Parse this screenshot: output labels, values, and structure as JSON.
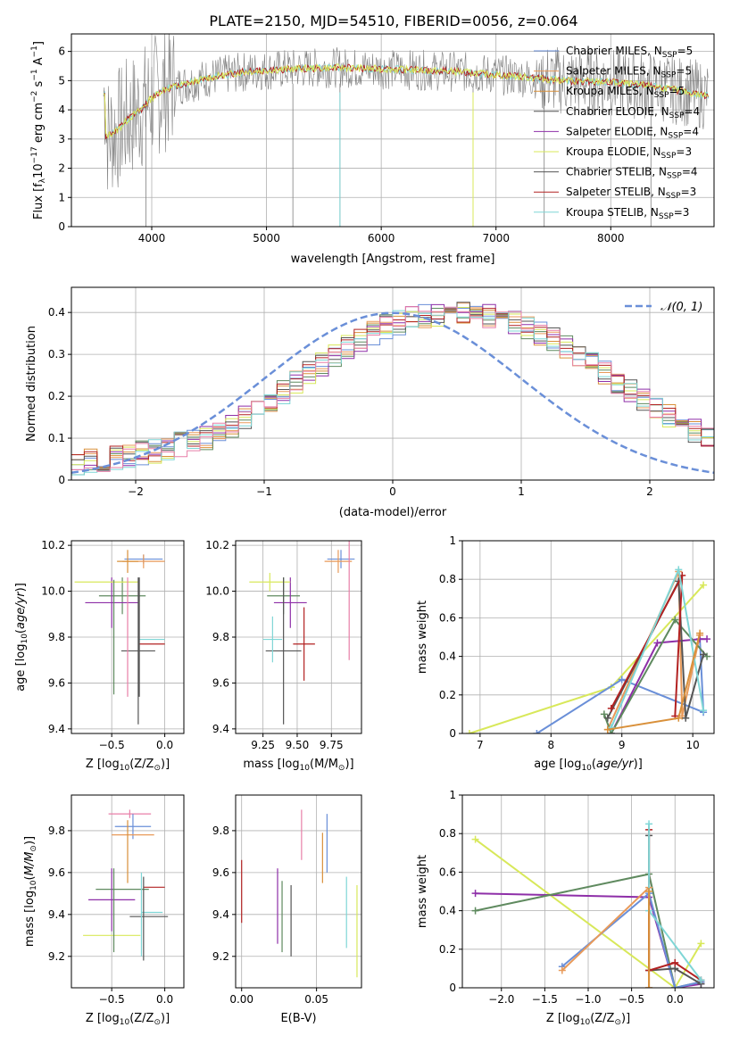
{
  "figure_title": "PLATE=2150, MJD=54510, FIBERID=0056, z=0.064",
  "colors": {
    "grid": "#b0b0b0",
    "series": [
      "#6a8fd8",
      "#e89a5a",
      "#d9903a",
      "#5f8a5f",
      "#8e2fa8",
      "#d8e85a",
      "#555555",
      "#b22222",
      "#7fd6d6"
    ],
    "pink": "#e87fa8",
    "gray_data": "#808080"
  },
  "legend_spectrum": [
    {
      "pre": "Chabrier MILES, N",
      "sub": "SSP",
      "post": "=5"
    },
    {
      "pre": "Salpeter MILES, N",
      "sub": "SSP",
      "post": "=5"
    },
    {
      "pre": "Kroupa MILES, N",
      "sub": "SSP",
      "post": "=5"
    },
    {
      "pre": "Chabrier ELODIE, N",
      "sub": "SSP",
      "post": "=4"
    },
    {
      "pre": "Salpeter ELODIE, N",
      "sub": "SSP",
      "post": "=4"
    },
    {
      "pre": "Kroupa ELODIE, N",
      "sub": "SSP",
      "post": "=3"
    },
    {
      "pre": "Chabrier STELIB, N",
      "sub": "SSP",
      "post": "=4"
    },
    {
      "pre": "Salpeter STELIB, N",
      "sub": "SSP",
      "post": "=3"
    },
    {
      "pre": "Kroupa STELIB, N",
      "sub": "SSP",
      "post": "=3"
    }
  ],
  "legend_hist": "𝒩(0, 1)",
  "chart_data": [
    {
      "id": "spectrum",
      "type": "line",
      "xlabel": "wavelength [Angstrom, rest frame]",
      "ylabel_pre": "Flux [f",
      "ylabel_lambda": "λ",
      "ylabel_mid": "10",
      "ylabel_exp1": "−17",
      "ylabel_post": " erg cm",
      "ylabel_exp2": "−2",
      "ylabel_s": " s",
      "ylabel_exp3": "−1",
      "ylabel_A": " A",
      "ylabel_exp4": "−1",
      "ylabel_end": "]",
      "xlim": [
        3300,
        8900
      ],
      "ylim": [
        0,
        6.6
      ],
      "xticks": [
        4000,
        5000,
        6000,
        7000,
        8000
      ],
      "yticks": [
        0,
        1,
        2,
        3,
        4,
        5,
        6
      ],
      "continuum": [
        [
          3600,
          3.1
        ],
        [
          3700,
          3.3
        ],
        [
          3800,
          3.7
        ],
        [
          3900,
          4.0
        ],
        [
          4000,
          4.4
        ],
        [
          4100,
          4.7
        ],
        [
          4300,
          4.9
        ],
        [
          4500,
          5.1
        ],
        [
          4800,
          5.3
        ],
        [
          5200,
          5.4
        ],
        [
          5600,
          5.45
        ],
        [
          6000,
          5.4
        ],
        [
          6400,
          5.35
        ],
        [
          6700,
          5.3
        ],
        [
          7000,
          5.2
        ],
        [
          7300,
          5.1
        ],
        [
          7600,
          5.0
        ],
        [
          8000,
          4.95
        ],
        [
          8400,
          4.8
        ],
        [
          8800,
          4.5
        ]
      ],
      "grid": true
    },
    {
      "id": "residual_hist",
      "type": "bar",
      "xlabel": "(data-model)/error",
      "ylabel": "Normed distribution",
      "xlim": [
        -2.5,
        2.5
      ],
      "ylim": [
        0,
        0.46
      ],
      "xticks": [
        -2,
        -1,
        0,
        1,
        2
      ],
      "yticks": [
        0.0,
        0.1,
        0.2,
        0.3,
        0.4
      ],
      "bin_width": 0.1,
      "hist_values": [
        0.04,
        0.045,
        0.05,
        0.055,
        0.06,
        0.065,
        0.07,
        0.075,
        0.085,
        0.09,
        0.1,
        0.115,
        0.13,
        0.15,
        0.17,
        0.19,
        0.21,
        0.23,
        0.255,
        0.275,
        0.295,
        0.315,
        0.335,
        0.35,
        0.365,
        0.375,
        0.385,
        0.39,
        0.395,
        0.4,
        0.4,
        0.395,
        0.39,
        0.385,
        0.375,
        0.365,
        0.35,
        0.335,
        0.315,
        0.295,
        0.275,
        0.255,
        0.23,
        0.21,
        0.19,
        0.17,
        0.15,
        0.13,
        0.115,
        0.1,
        0.09,
        0.085,
        0.075,
        0.07,
        0.065,
        0.055,
        0.05,
        0.045,
        0.04,
        0.035
      ],
      "curve": "gaussian",
      "grid": true
    },
    {
      "id": "age_vs_Z",
      "type": "scatter",
      "xlabel_pre": "Z [log",
      "xlabel_sub": "10",
      "xlabel_arg": "(Z/Z",
      "xlabel_sub2": "⊙",
      "xlabel_end": ")]",
      "ylabel": "age  [log10(age/yr)]",
      "xlim": [
        -0.88,
        0.18
      ],
      "ylim": [
        9.38,
        10.22
      ],
      "xticks": [
        -0.5,
        0.0
      ],
      "xtick_labels": [
        "−0.5",
        "0.0"
      ],
      "yticks": [
        9.4,
        9.6,
        9.8,
        10.0,
        10.2
      ],
      "ytick_labels": [
        "9.4",
        "9.6",
        "9.8",
        "10.0",
        "10.2"
      ],
      "points": [
        {
          "x": -0.2,
          "y": 10.14,
          "xerr": 0.18,
          "yerr": 0.02,
          "c": 0
        },
        {
          "x": -0.2,
          "y": 10.13,
          "xerr": 0.2,
          "yerr": 0.03,
          "c": 1
        },
        {
          "x": -0.35,
          "y": 10.13,
          "xerr": 0.1,
          "yerr": 0.05,
          "c": 2
        },
        {
          "x": -0.4,
          "y": 9.98,
          "xerr": 0.22,
          "yerr": 0.08,
          "c": 3
        },
        {
          "x": -0.5,
          "y": 9.95,
          "xerr": 0.25,
          "yerr": 0.11,
          "c": 4
        },
        {
          "x": -0.55,
          "y": 10.04,
          "xerr": 0.3,
          "yerr": 0.0,
          "c": 5
        },
        {
          "x": -0.25,
          "y": 9.74,
          "xerr": 0.16,
          "yerr": 0.32,
          "c": 6
        },
        {
          "x": -0.12,
          "y": 9.77,
          "xerr": 0.12,
          "yerr": 0.0,
          "c": 7
        },
        {
          "x": -0.12,
          "y": 9.79,
          "xerr": 0.12,
          "yerr": 0.0,
          "c": 8
        },
        {
          "x": -0.35,
          "y": 9.8,
          "xerr": 0.0,
          "yerr": 0.26,
          "c": 9
        },
        {
          "x": -0.48,
          "y": 9.8,
          "xerr": 0.0,
          "yerr": 0.25,
          "c": 3
        },
        {
          "x": -0.24,
          "y": 9.8,
          "xerr": 0.0,
          "yerr": 0.26,
          "c": 6
        }
      ],
      "grid": true
    },
    {
      "id": "age_vs_mass",
      "type": "scatter",
      "xlabel_pre": "mass [log",
      "xlabel_sub": "10",
      "xlabel_arg": "(M/M",
      "xlabel_sub2": "⊙",
      "xlabel_end": ")]",
      "xlim": [
        9.05,
        9.97
      ],
      "ylim": [
        9.38,
        10.22
      ],
      "xticks": [
        9.25,
        9.5,
        9.75
      ],
      "xtick_labels": [
        "9.25",
        "9.50",
        "9.75"
      ],
      "yticks": [
        9.4,
        9.6,
        9.8,
        10.0,
        10.2
      ],
      "ytick_labels": [
        "9.4",
        "9.6",
        "9.8",
        "10.0",
        "10.2"
      ],
      "points": [
        {
          "x": 9.82,
          "y": 10.14,
          "xerr": 0.1,
          "yerr": 0.04,
          "c": 0
        },
        {
          "x": 9.8,
          "y": 10.13,
          "xerr": 0.1,
          "yerr": 0.05,
          "c": 1
        },
        {
          "x": 9.88,
          "y": 10.0,
          "xerr": 0.0,
          "yerr": 0.3,
          "c": 9
        },
        {
          "x": 9.4,
          "y": 9.98,
          "xerr": 0.12,
          "yerr": 0.08,
          "c": 3
        },
        {
          "x": 9.45,
          "y": 9.95,
          "xerr": 0.12,
          "yerr": 0.11,
          "c": 4
        },
        {
          "x": 9.3,
          "y": 10.04,
          "xerr": 0.15,
          "yerr": 0.04,
          "c": 5
        },
        {
          "x": 9.4,
          "y": 9.74,
          "xerr": 0.13,
          "yerr": 0.32,
          "c": 6
        },
        {
          "x": 9.55,
          "y": 9.77,
          "xerr": 0.08,
          "yerr": 0.16,
          "c": 7
        },
        {
          "x": 9.32,
          "y": 9.79,
          "xerr": 0.07,
          "yerr": 0.1,
          "c": 8
        }
      ],
      "grid": true
    },
    {
      "id": "weight_vs_age",
      "type": "line",
      "xlabel_pre": "age  [log",
      "xlabel_sub": "10",
      "xlabel_arg": "(age/yr)]",
      "ylabel": "mass weight",
      "xlim": [
        6.75,
        10.3
      ],
      "ylim": [
        0,
        1
      ],
      "xticks": [
        7,
        8,
        9,
        10
      ],
      "yticks": [
        0.0,
        0.2,
        0.4,
        0.6,
        0.8,
        1.0
      ],
      "series": [
        {
          "c": 5,
          "points": [
            [
              6.85,
              0.0
            ],
            [
              8.85,
              0.24
            ],
            [
              10.15,
              0.77
            ]
          ]
        },
        {
          "c": 0,
          "points": [
            [
              7.8,
              0.0
            ],
            [
              9.0,
              0.28
            ],
            [
              10.15,
              0.11
            ],
            [
              10.1,
              0.49
            ]
          ]
        },
        {
          "c": 1,
          "points": [
            [
              8.8,
              0.02
            ],
            [
              9.8,
              0.84
            ],
            [
              9.85,
              0.09
            ],
            [
              10.1,
              0.51
            ]
          ]
        },
        {
          "c": 4,
          "points": [
            [
              8.85,
              0.0
            ],
            [
              9.5,
              0.47
            ],
            [
              10.1,
              0.49
            ],
            [
              10.2,
              0.49
            ]
          ]
        },
        {
          "c": 3,
          "points": [
            [
              8.75,
              0.1
            ],
            [
              8.85,
              0.0
            ],
            [
              9.75,
              0.59
            ],
            [
              10.2,
              0.4
            ]
          ]
        },
        {
          "c": 6,
          "points": [
            [
              8.8,
              0.08
            ],
            [
              9.8,
              0.79
            ],
            [
              9.9,
              0.08
            ],
            [
              10.15,
              0.41
            ]
          ]
        },
        {
          "c": 7,
          "points": [
            [
              8.85,
              0.13
            ],
            [
              9.85,
              0.82
            ],
            [
              9.75,
              0.09
            ]
          ]
        },
        {
          "c": 8,
          "points": [
            [
              8.85,
              0.03
            ],
            [
              9.8,
              0.85
            ],
            [
              10.15,
              0.12
            ]
          ]
        },
        {
          "c": 2,
          "points": [
            [
              8.8,
              0.02
            ],
            [
              9.8,
              0.08
            ],
            [
              10.1,
              0.52
            ]
          ]
        }
      ],
      "grid": true
    },
    {
      "id": "mass_vs_Z",
      "type": "scatter",
      "xlabel_pre": "Z [log",
      "xlabel_sub": "10",
      "xlabel_arg": "(Z/Z",
      "xlabel_sub2": "⊙",
      "xlabel_end": ")]",
      "ylabel": "mass [log10(M/M⊙)]",
      "xlim": [
        -0.88,
        0.18
      ],
      "ylim": [
        9.05,
        9.97
      ],
      "xticks": [
        -0.5,
        0.0
      ],
      "xtick_labels": [
        "−0.5",
        "0.0"
      ],
      "yticks": [
        9.2,
        9.4,
        9.6,
        9.8
      ],
      "ytick_labels": [
        "9.2",
        "9.4",
        "9.6",
        "9.8"
      ],
      "points": [
        {
          "x": -0.33,
          "y": 9.88,
          "xerr": 0.2,
          "yerr": 0.02,
          "c": 9
        },
        {
          "x": -0.3,
          "y": 9.82,
          "xerr": 0.17,
          "yerr": 0.06,
          "c": 0
        },
        {
          "x": -0.3,
          "y": 9.78,
          "xerr": 0.2,
          "yerr": 0.0,
          "c": 1
        },
        {
          "x": -0.35,
          "y": 9.7,
          "xerr": 0.0,
          "yerr": 0.15,
          "c": 2
        },
        {
          "x": -0.4,
          "y": 9.52,
          "xerr": 0.25,
          "yerr": 0.0,
          "c": 3
        },
        {
          "x": -0.5,
          "y": 9.47,
          "xerr": 0.22,
          "yerr": 0.15,
          "c": 4
        },
        {
          "x": -0.5,
          "y": 9.3,
          "xerr": 0.27,
          "yerr": 0.0,
          "c": 5
        },
        {
          "x": -0.15,
          "y": 9.39,
          "xerr": 0.18,
          "yerr": 0.0,
          "c": 6
        },
        {
          "x": -0.1,
          "y": 9.53,
          "xerr": 0.1,
          "yerr": 0.0,
          "c": 7
        },
        {
          "x": -0.12,
          "y": 9.41,
          "xerr": 0.1,
          "yerr": 0.0,
          "c": 8
        },
        {
          "x": -0.2,
          "y": 9.38,
          "xerr": 0.0,
          "yerr": 0.2,
          "c": 6
        },
        {
          "x": -0.22,
          "y": 9.4,
          "xerr": 0.0,
          "yerr": 0.2,
          "c": 8
        },
        {
          "x": -0.48,
          "y": 9.42,
          "xerr": 0.0,
          "yerr": 0.2,
          "c": 3
        }
      ],
      "grid": true
    },
    {
      "id": "mass_vs_ebv",
      "type": "scatter",
      "xlabel": "E(B-V)",
      "xlim": [
        -0.004,
        0.08
      ],
      "ylim": [
        9.05,
        9.97
      ],
      "xticks": [
        0.0,
        0.05
      ],
      "xtick_labels": [
        "0.00",
        "0.05"
      ],
      "yticks": [
        9.2,
        9.4,
        9.6,
        9.8
      ],
      "ytick_labels": [
        "9.2",
        "9.4",
        "9.6",
        "9.8"
      ],
      "points": [
        {
          "x": 0.0,
          "y": 9.51,
          "xerr": 0,
          "yerr": 0.15,
          "c": 7
        },
        {
          "x": 0.024,
          "y": 9.44,
          "xerr": 0,
          "yerr": 0.18,
          "c": 4
        },
        {
          "x": 0.027,
          "y": 9.39,
          "xerr": 0,
          "yerr": 0.17,
          "c": 3
        },
        {
          "x": 0.033,
          "y": 9.37,
          "xerr": 0,
          "yerr": 0.17,
          "c": 6
        },
        {
          "x": 0.04,
          "y": 9.78,
          "xerr": 0,
          "yerr": 0.12,
          "c": 9
        },
        {
          "x": 0.054,
          "y": 9.67,
          "xerr": 0,
          "yerr": 0.12,
          "c": 2
        },
        {
          "x": 0.057,
          "y": 9.74,
          "xerr": 0,
          "yerr": 0.14,
          "c": 0
        },
        {
          "x": 0.07,
          "y": 9.41,
          "xerr": 0,
          "yerr": 0.17,
          "c": 8
        },
        {
          "x": 0.077,
          "y": 9.32,
          "xerr": 0,
          "yerr": 0.22,
          "c": 5
        }
      ],
      "grid": true
    },
    {
      "id": "weight_vs_Z",
      "type": "line",
      "xlabel_pre": "Z [log",
      "xlabel_sub": "10",
      "xlabel_arg": "(Z/Z",
      "xlabel_sub2": "⊙",
      "xlabel_end": ")]",
      "ylabel": "mass weight",
      "xlim": [
        -2.45,
        0.45
      ],
      "ylim": [
        0,
        1
      ],
      "xticks": [
        -2.0,
        -1.5,
        -1.0,
        -0.5,
        0.0
      ],
      "xtick_labels": [
        "−2.0",
        "−1.5",
        "−1.0",
        "−0.5",
        "0.0"
      ],
      "yticks": [
        0.0,
        0.2,
        0.4,
        0.6,
        0.8,
        1.0
      ],
      "series": [
        {
          "c": 5,
          "points": [
            [
              -2.3,
              0.77
            ],
            [
              0.0,
              0.0
            ],
            [
              0.3,
              0.23
            ]
          ]
        },
        {
          "c": 4,
          "points": [
            [
              -2.3,
              0.49
            ],
            [
              -0.3,
              0.47
            ],
            [
              0.0,
              0.0
            ],
            [
              0.3,
              0.02
            ]
          ]
        },
        {
          "c": 3,
          "points": [
            [
              -2.3,
              0.4
            ],
            [
              -0.3,
              0.59
            ],
            [
              0.0,
              0.0
            ],
            [
              0.3,
              0.03
            ]
          ]
        },
        {
          "c": 0,
          "points": [
            [
              -1.3,
              0.11
            ],
            [
              -0.3,
              0.49
            ],
            [
              0.0,
              0.0
            ],
            [
              0.3,
              0.03
            ]
          ]
        },
        {
          "c": 1,
          "points": [
            [
              -1.3,
              0.09
            ],
            [
              -0.3,
              0.52
            ],
            [
              -0.3,
              0.0
            ]
          ]
        },
        {
          "c": 6,
          "points": [
            [
              -0.3,
              0.79
            ],
            [
              -0.3,
              0.09
            ],
            [
              0.0,
              0.1
            ],
            [
              0.3,
              0.02
            ]
          ]
        },
        {
          "c": 7,
          "points": [
            [
              -0.3,
              0.82
            ],
            [
              -0.3,
              0.09
            ],
            [
              0.0,
              0.13
            ],
            [
              0.3,
              0.04
            ]
          ]
        },
        {
          "c": 8,
          "points": [
            [
              -0.3,
              0.85
            ],
            [
              -0.3,
              0.4
            ],
            [
              0.3,
              0.04
            ]
          ]
        },
        {
          "c": 2,
          "points": [
            [
              -0.3,
              0.5
            ],
            [
              -0.3,
              0.0
            ]
          ]
        }
      ],
      "grid": true
    }
  ]
}
